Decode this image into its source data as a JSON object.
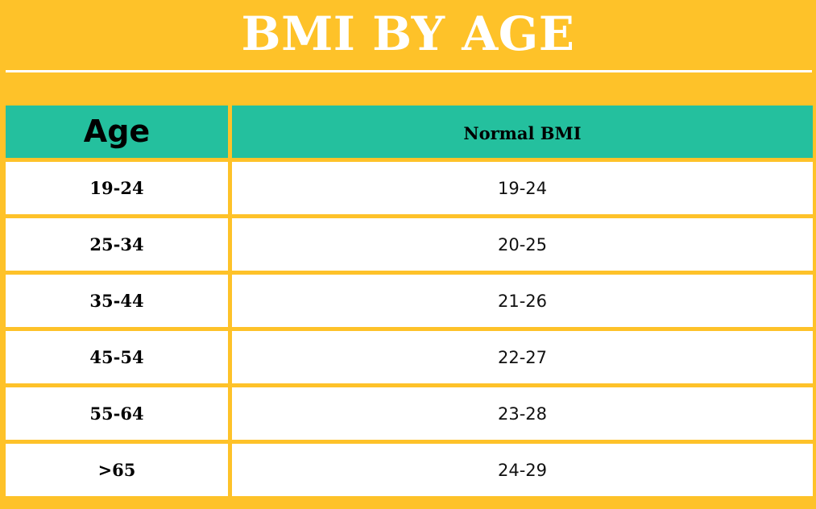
{
  "title": "BMI BY AGE",
  "table": {
    "headers": {
      "age": "Age",
      "bmi": "Normal BMI"
    },
    "rows": [
      {
        "age": "19-24",
        "bmi": "19-24"
      },
      {
        "age": "25-34",
        "bmi": "20-25"
      },
      {
        "age": "35-44",
        "bmi": "21-26"
      },
      {
        "age": "45-54",
        "bmi": "22-27"
      },
      {
        "age": "55-64",
        "bmi": "23-28"
      },
      {
        "age": ">65",
        "bmi": "24-29"
      }
    ]
  },
  "colors": {
    "background": "#FEC229",
    "header": "#24C09E",
    "cell": "#FFFFFF"
  }
}
